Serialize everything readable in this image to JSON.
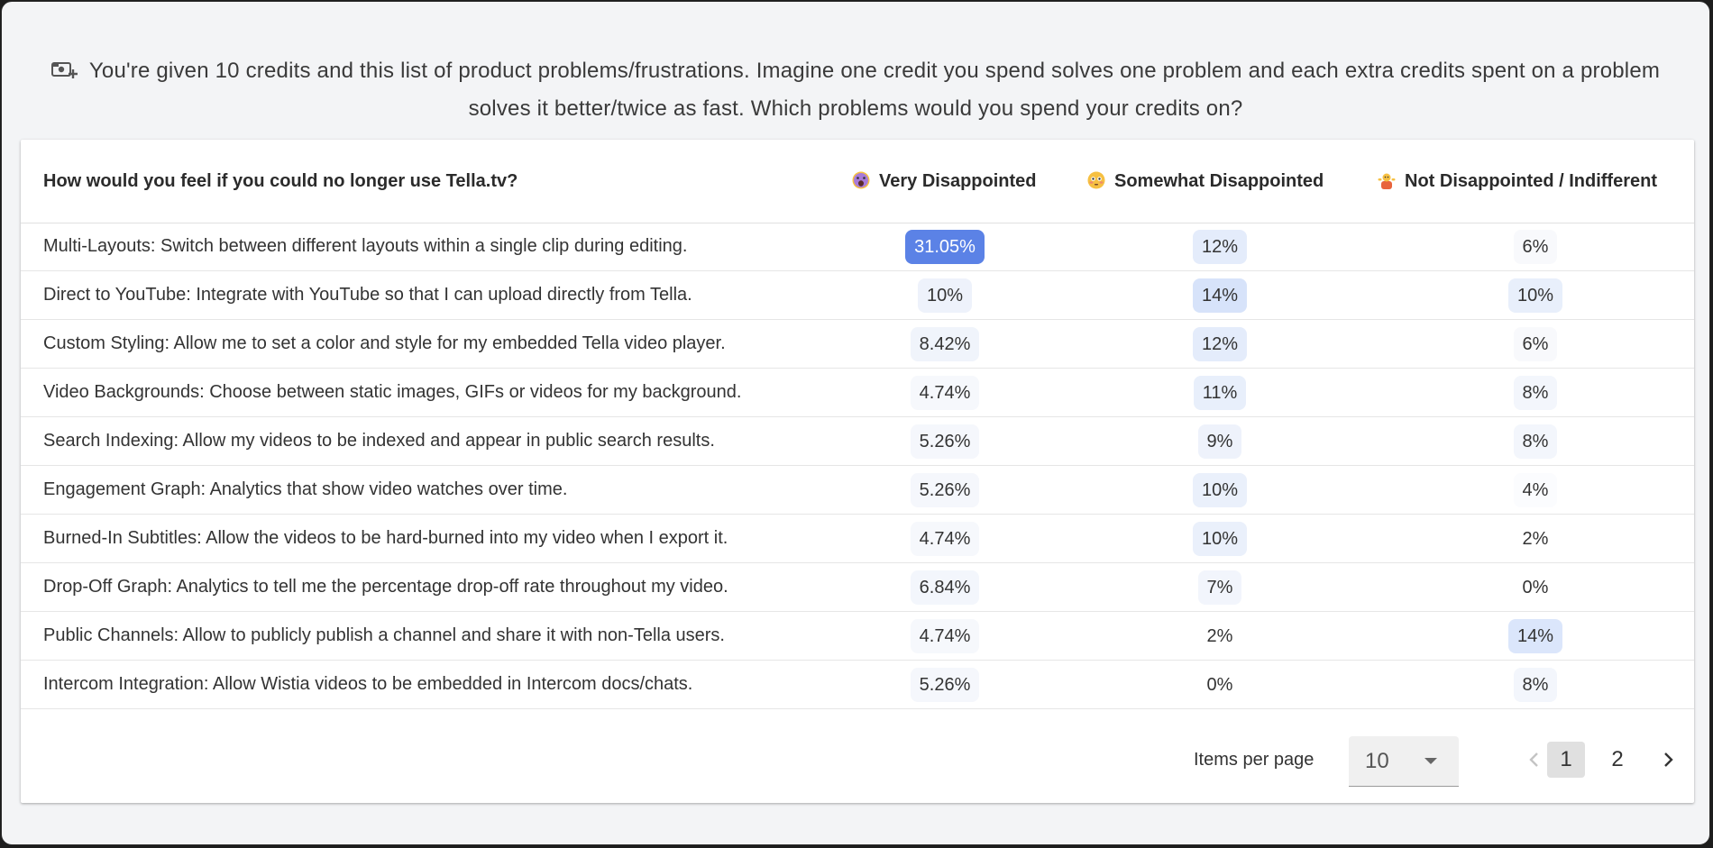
{
  "question": {
    "text": "You're given 10 credits and this list of product problems/frustrations. Imagine one credit you spend solves one problem and each extra credits spent on a problem solves it better/twice as fast. Which problems would you spend your credits on?"
  },
  "table": {
    "header": {
      "question": "How would you feel if you could no longer use Tella.tv?",
      "col1": "Very Disappointed",
      "col2": "Somewhat Disappointed",
      "col3": "Not Disappointed / Indifferent"
    },
    "rows": [
      {
        "label": "Multi-Layouts: Switch between different layouts within a single clip during editing.",
        "v1": "31.05%",
        "v2": "12%",
        "v3": "6%"
      },
      {
        "label": "Direct to YouTube: Integrate with YouTube so that I can upload directly from Tella.",
        "v1": "10%",
        "v2": "14%",
        "v3": "10%"
      },
      {
        "label": "Custom Styling: Allow me to set a color and style for my embedded Tella video player.",
        "v1": "8.42%",
        "v2": "12%",
        "v3": "6%"
      },
      {
        "label": "Video Backgrounds: Choose between static images, GIFs or videos for my background.",
        "v1": "4.74%",
        "v2": "11%",
        "v3": "8%"
      },
      {
        "label": "Search Indexing: Allow my videos to be indexed and appear in public search results.",
        "v1": "5.26%",
        "v2": "9%",
        "v3": "8%"
      },
      {
        "label": "Engagement Graph: Analytics that show video watches over time.",
        "v1": "5.26%",
        "v2": "10%",
        "v3": "4%"
      },
      {
        "label": "Burned-In Subtitles: Allow the videos to be hard-burned into my video when I export it.",
        "v1": "4.74%",
        "v2": "10%",
        "v3": "2%"
      },
      {
        "label": "Drop-Off Graph: Analytics to tell me the percentage drop-off rate throughout my video.",
        "v1": "6.84%",
        "v2": "7%",
        "v3": "0%"
      },
      {
        "label": "Public Channels: Allow to publicly publish a channel and share it with non-Tella users.",
        "v1": "4.74%",
        "v2": "2%",
        "v3": "14%"
      },
      {
        "label": "Intercom Integration: Allow Wistia videos to be embedded in Intercom docs/chats.",
        "v1": "5.26%",
        "v2": "0%",
        "v3": "8%"
      }
    ]
  },
  "pagination": {
    "items_per_page_label": "Items per page",
    "items_per_page_value": "10",
    "pages": [
      "1",
      "2"
    ],
    "current_page": "1"
  },
  "colors": {
    "highlight_strong": "#5b82e6",
    "highlight_medium": "#dbe6fb",
    "highlight_light": "#eef3fc",
    "highlight_faint": "#f5f7fc",
    "page_bg": "#f3f4f6"
  }
}
